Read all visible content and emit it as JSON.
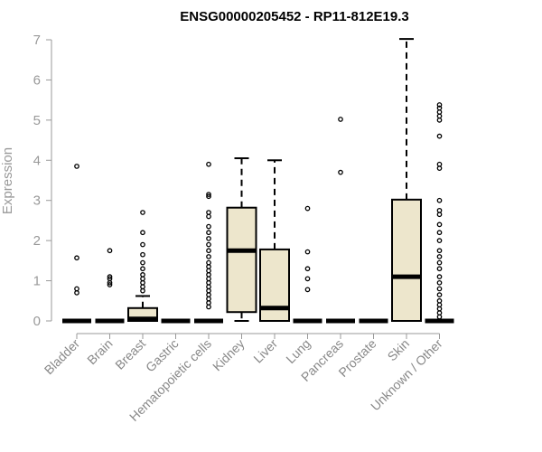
{
  "chart_data": {
    "type": "boxplot",
    "title": "ENSG00000205452 - RP11-812E19.3",
    "xlabel": "",
    "ylabel": "Expression",
    "ylim": [
      0,
      7
    ],
    "yticks": [
      0,
      1,
      2,
      3,
      4,
      5,
      6,
      7
    ],
    "box_fill": "#ede6cc",
    "categories": [
      "Bladder",
      "Brain",
      "Breast",
      "Gastric",
      "Hematopoietic cells",
      "Kidney",
      "Liver",
      "Lung",
      "Pancreas",
      "Prostate",
      "Skin",
      "Unknown / Other"
    ],
    "boxes": [
      {
        "q1": 0,
        "median": 0,
        "q3": 0,
        "whisker_low": 0,
        "whisker_high": 0,
        "outliers": [
          0.7,
          0.8,
          1.57,
          3.85
        ]
      },
      {
        "q1": 0,
        "median": 0,
        "q3": 0,
        "whisker_low": 0,
        "whisker_high": 0,
        "outliers": [
          0.9,
          0.95,
          1.05,
          1.1,
          1.75
        ]
      },
      {
        "q1": 0,
        "median": 0.05,
        "q3": 0.32,
        "whisker_low": 0,
        "whisker_high": 0.62,
        "outliers": [
          0.75,
          0.85,
          0.95,
          1.05,
          1.15,
          1.3,
          1.45,
          1.65,
          1.9,
          2.2,
          2.7
        ]
      },
      {
        "q1": 0,
        "median": 0,
        "q3": 0,
        "whisker_low": 0,
        "whisker_high": 0,
        "outliers": []
      },
      {
        "q1": 0,
        "median": 0,
        "q3": 0,
        "whisker_low": 0,
        "whisker_high": 0,
        "outliers": [
          0.35,
          0.45,
          0.55,
          0.65,
          0.75,
          0.85,
          0.95,
          1.05,
          1.15,
          1.25,
          1.35,
          1.45,
          1.6,
          1.75,
          1.9,
          2.05,
          2.2,
          2.35,
          2.6,
          2.7,
          3.1,
          3.15,
          3.9
        ]
      },
      {
        "q1": 0.22,
        "median": 1.75,
        "q3": 2.82,
        "whisker_low": 0,
        "whisker_high": 4.05,
        "outliers": []
      },
      {
        "q1": 0,
        "median": 0.32,
        "q3": 1.78,
        "whisker_low": 0,
        "whisker_high": 4.0,
        "outliers": []
      },
      {
        "q1": 0,
        "median": 0,
        "q3": 0,
        "whisker_low": 0,
        "whisker_high": 0,
        "outliers": [
          0.78,
          1.05,
          1.3,
          1.72,
          2.8
        ]
      },
      {
        "q1": 0,
        "median": 0,
        "q3": 0,
        "whisker_low": 0,
        "whisker_high": 0,
        "outliers": [
          3.7,
          5.02
        ]
      },
      {
        "q1": 0,
        "median": 0,
        "q3": 0,
        "whisker_low": 0,
        "whisker_high": 0,
        "outliers": []
      },
      {
        "q1": 0,
        "median": 1.1,
        "q3": 3.02,
        "whisker_low": 0,
        "whisker_high": 7.02,
        "outliers": []
      },
      {
        "q1": 0,
        "median": 0,
        "q3": 0,
        "whisker_low": 0,
        "whisker_high": 0,
        "outliers": [
          0.1,
          0.2,
          0.3,
          0.4,
          0.5,
          0.65,
          0.8,
          0.95,
          1.1,
          1.3,
          1.45,
          1.6,
          1.75,
          2.0,
          2.2,
          2.4,
          2.65,
          2.75,
          3.0,
          3.8,
          3.9,
          4.6,
          5.0,
          5.1,
          5.2,
          5.3,
          5.38
        ]
      }
    ]
  }
}
